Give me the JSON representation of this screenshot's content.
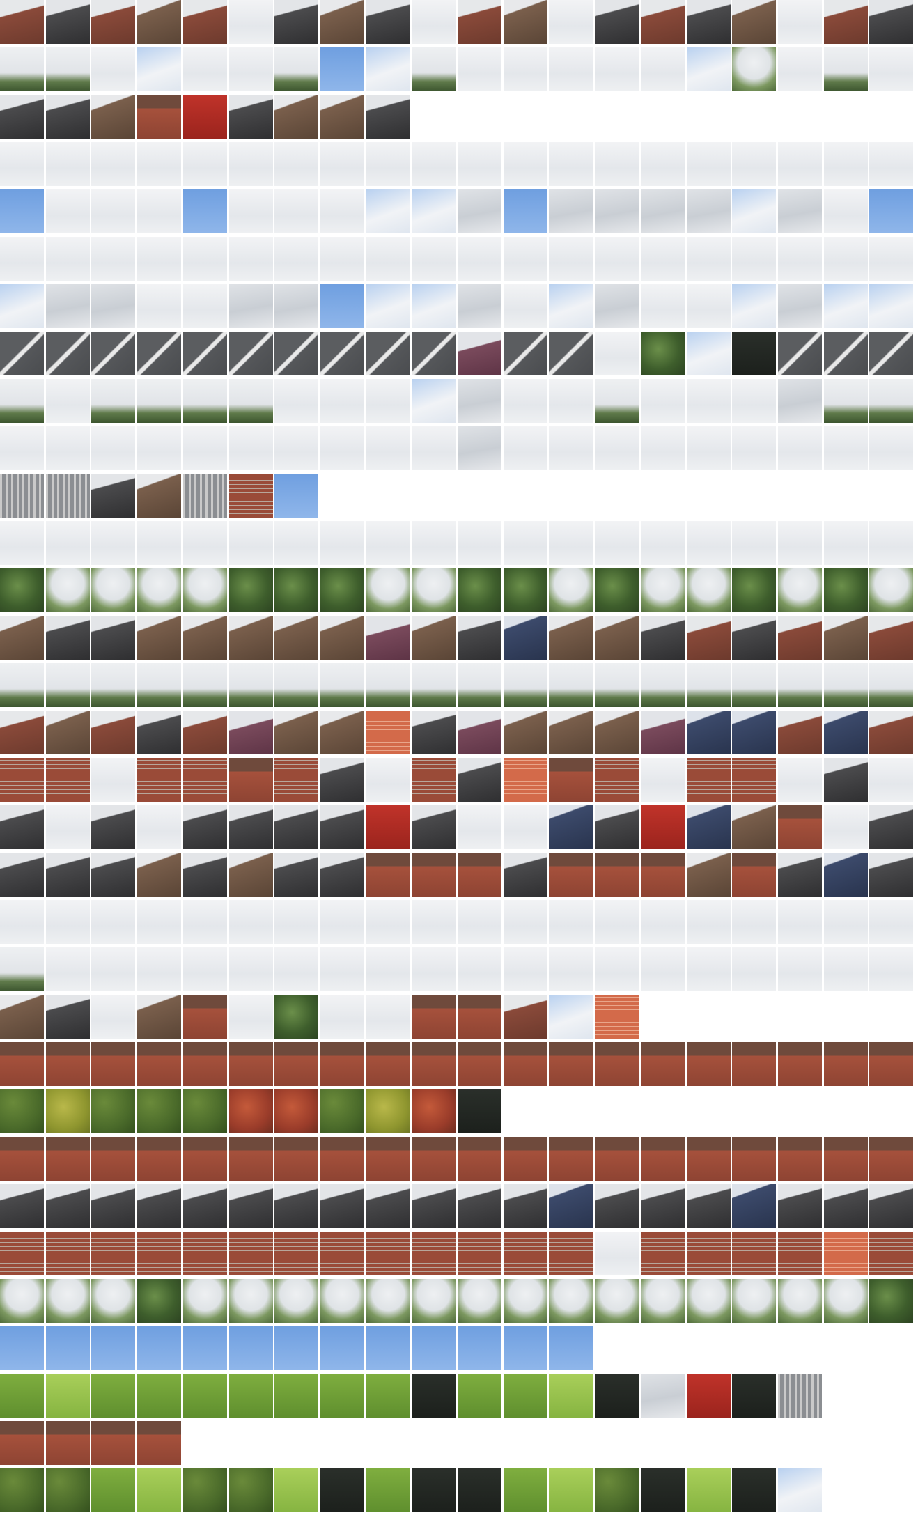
{
  "title": "",
  "rows": [
    {
      "count": 20,
      "swatches": [
        "roofr",
        "roofd",
        "roofr",
        "roofb",
        "roofr",
        "skyw",
        "roofd",
        "roofb",
        "roofd",
        "skyw",
        "roofr",
        "roofb",
        "skyw",
        "roofd",
        "roofr",
        "roofd",
        "roofb",
        "skyw",
        "roofr",
        "roofd"
      ]
    },
    {
      "count": 20,
      "swatches": [
        "skyt",
        "skyt",
        "skyw",
        "skybc",
        "skyw",
        "skyw",
        "skyt",
        "skyb",
        "skybc",
        "skyt",
        "skyw",
        "skyw",
        "skyw",
        "skyw",
        "skyw",
        "skybc",
        "treel",
        "skyw",
        "skyt",
        "skyw"
      ]
    },
    {
      "count": 9,
      "swatches": [
        "roofd",
        "roofd",
        "roofb",
        "house",
        "red",
        "roofd",
        "roofb",
        "roofb",
        "roofd"
      ]
    },
    {
      "count": 20,
      "swatches": [
        "skyw",
        "skyw",
        "skyw",
        "skyw",
        "skyw",
        "skyw",
        "skyw",
        "skyw",
        "skyw",
        "skyw",
        "skyw",
        "skyw",
        "skyw",
        "skyw",
        "skyw",
        "skyw",
        "skyw",
        "skyw",
        "skyw",
        "skyw"
      ]
    },
    {
      "count": 20,
      "swatches": [
        "skyb",
        "skyw",
        "skyw",
        "skyw",
        "skyb",
        "skyw",
        "skyw",
        "skyw",
        "skybc",
        "skybc",
        "skyg",
        "skyb",
        "skyg",
        "skyg",
        "skyg",
        "skyg",
        "skybc",
        "skyg",
        "skyw",
        "skyb"
      ]
    },
    {
      "count": 20,
      "swatches": [
        "skyw",
        "skyw",
        "skyw",
        "skyw",
        "skyw",
        "skyw",
        "skyw",
        "skyw",
        "skyw",
        "skyw",
        "skyw",
        "skyw",
        "skyw",
        "skyw",
        "skyw",
        "skyw",
        "skyw",
        "skyw",
        "skyw",
        "skyw"
      ]
    },
    {
      "count": 20,
      "swatches": [
        "skybc",
        "skyg",
        "skyg",
        "skyw",
        "skyw",
        "skyg",
        "skyg",
        "skyb",
        "skybc",
        "skybc",
        "skyg",
        "skyw",
        "skybc",
        "skyg",
        "skyw",
        "skyw",
        "skybc",
        "skyg",
        "skybc",
        "skybc"
      ]
    },
    {
      "count": 20,
      "swatches": [
        "road",
        "road",
        "road",
        "road",
        "road",
        "road",
        "road",
        "road",
        "road",
        "road",
        "roofp",
        "road",
        "road",
        "skyw",
        "treeg",
        "skybc",
        "dark",
        "road",
        "road",
        "road"
      ]
    },
    {
      "count": 20,
      "swatches": [
        "skyt",
        "skyw",
        "skyt",
        "skyt",
        "skyt",
        "skyt",
        "skyw",
        "skyw",
        "skyw",
        "skybc",
        "skyg",
        "skyw",
        "skyw",
        "skyt",
        "skyw",
        "skyw",
        "skyw",
        "skyg",
        "skyt",
        "skyt"
      ]
    },
    {
      "count": 20,
      "swatches": [
        "skyw",
        "skyw",
        "skyw",
        "skyw",
        "skyw",
        "skyw",
        "skyw",
        "skyw",
        "skyw",
        "skyw",
        "skyg",
        "skyw",
        "skyw",
        "skyw",
        "skyw",
        "skyw",
        "skyw",
        "skyw",
        "skyw",
        "skyw"
      ]
    },
    {
      "count": 7,
      "swatches": [
        "fence",
        "fence",
        "roofd",
        "roofb",
        "fence",
        "brick",
        "skyb"
      ]
    },
    {
      "count": 20,
      "swatches": [
        "skyw",
        "skyw",
        "skyw",
        "skyw",
        "skyw",
        "skyw",
        "skyw",
        "skyw",
        "skyw",
        "skyw",
        "skyw",
        "skyw",
        "skyw",
        "skyw",
        "skyw",
        "skyw",
        "skyw",
        "skyw",
        "skyw",
        "skyw"
      ]
    },
    {
      "count": 20,
      "swatches": [
        "treeg",
        "treel",
        "treel",
        "treel",
        "treel",
        "treeg",
        "treeg",
        "treeg",
        "treel",
        "treel",
        "treeg",
        "treeg",
        "treel",
        "treeg",
        "treel",
        "treel",
        "treeg",
        "treel",
        "treeg",
        "treel"
      ]
    },
    {
      "count": 20,
      "swatches": [
        "roofb",
        "roofd",
        "roofd",
        "roofb",
        "roofb",
        "roofb",
        "roofb",
        "roofb",
        "roofp",
        "roofb",
        "roofd",
        "roofbl",
        "roofb",
        "roofb",
        "roofd",
        "roofr",
        "roofd",
        "roofr",
        "roofb",
        "roofr"
      ]
    },
    {
      "count": 20,
      "swatches": [
        "skyt",
        "skyt",
        "skyt",
        "skyt",
        "skyt",
        "skyt",
        "skyt",
        "skyt",
        "skyt",
        "skyt",
        "skyt",
        "skyt",
        "skyt",
        "skyt",
        "skyt",
        "skyt",
        "skyt",
        "skyt",
        "skyt",
        "skyt"
      ]
    },
    {
      "count": 20,
      "swatches": [
        "roofr",
        "roofb",
        "roofr",
        "roofd",
        "roofr",
        "roofp",
        "roofb",
        "roofb",
        "brickl",
        "roofd",
        "roofp",
        "roofb",
        "roofb",
        "roofb",
        "roofp",
        "roofbl",
        "roofbl",
        "roofr",
        "roofbl",
        "roofr"
      ]
    },
    {
      "count": 20,
      "swatches": [
        "brick",
        "brick",
        "skyw",
        "brick",
        "brick",
        "house",
        "brick",
        "roofd",
        "skyw",
        "brick",
        "roofd",
        "brickl",
        "house",
        "brick",
        "skyw",
        "brick",
        "brick",
        "skyw",
        "roofd",
        "skyw"
      ]
    },
    {
      "count": 20,
      "swatches": [
        "roofd",
        "skyw",
        "roofd",
        "skyw",
        "roofd",
        "roofd",
        "roofd",
        "roofd",
        "red",
        "roofd",
        "skyw",
        "skyw",
        "roofbl",
        "roofd",
        "red",
        "roofbl",
        "roofb",
        "house",
        "skyw",
        "roofd"
      ]
    },
    {
      "count": 20,
      "swatches": [
        "roofd",
        "roofd",
        "roofd",
        "roofb",
        "roofd",
        "roofb",
        "roofd",
        "roofd",
        "house",
        "house",
        "house",
        "roofd",
        "house",
        "house",
        "house",
        "roofb",
        "house",
        "roofd",
        "roofbl",
        "roofd"
      ]
    },
    {
      "count": 20,
      "swatches": [
        "skyw",
        "skyw",
        "skyw",
        "skyw",
        "skyw",
        "skyw",
        "skyw",
        "skyw",
        "skyw",
        "skyw",
        "skyw",
        "skyw",
        "skyw",
        "skyw",
        "skyw",
        "skyw",
        "skyw",
        "skyw",
        "skyw",
        "skyw"
      ]
    },
    {
      "count": 20,
      "swatches": [
        "skyt",
        "skyw",
        "skyw",
        "skyw",
        "skyw",
        "skyw",
        "skyw",
        "skyw",
        "skyw",
        "skyw",
        "skyw",
        "skyw",
        "skyw",
        "skyw",
        "skyw",
        "skyw",
        "skyw",
        "skyw",
        "skyw",
        "skyw"
      ]
    },
    {
      "count": 14,
      "swatches": [
        "roofb",
        "roofd",
        "skyw",
        "roofb",
        "house",
        "skyw",
        "treeg",
        "skyw",
        "skyw",
        "house",
        "house",
        "roofr",
        "skybc",
        "brickl"
      ]
    },
    {
      "count": 20,
      "swatches": [
        "house",
        "house",
        "house",
        "house",
        "house",
        "house",
        "house",
        "house",
        "house",
        "house",
        "house",
        "house",
        "house",
        "house",
        "house",
        "house",
        "house",
        "house",
        "house",
        "house"
      ]
    },
    {
      "count": 11,
      "swatches": [
        "hedge",
        "hedgy",
        "hedge",
        "hedge",
        "hedge",
        "autumn",
        "autumn",
        "hedge",
        "hedgy",
        "autumn",
        "dark"
      ]
    },
    {
      "count": 20,
      "swatches": [
        "house",
        "house",
        "house",
        "house",
        "house",
        "house",
        "house",
        "house",
        "house",
        "house",
        "house",
        "house",
        "house",
        "house",
        "house",
        "house",
        "house",
        "house",
        "house",
        "house"
      ]
    },
    {
      "count": 20,
      "swatches": [
        "roofd",
        "roofd",
        "roofd",
        "roofd",
        "roofd",
        "roofd",
        "roofd",
        "roofd",
        "roofd",
        "roofd",
        "roofd",
        "roofd",
        "roofbl",
        "roofd",
        "roofd",
        "roofd",
        "roofbl",
        "roofd",
        "roofd",
        "roofd"
      ]
    },
    {
      "count": 20,
      "swatches": [
        "brick",
        "brick",
        "brick",
        "brick",
        "brick",
        "brick",
        "brick",
        "brick",
        "brick",
        "brick",
        "brick",
        "brick",
        "brick",
        "skyw",
        "brick",
        "brick",
        "brick",
        "brick",
        "brickl",
        "brick"
      ]
    },
    {
      "count": 20,
      "swatches": [
        "treel",
        "treel",
        "treel",
        "treeg",
        "treel",
        "treel",
        "treel",
        "treel",
        "treel",
        "treel",
        "treel",
        "treel",
        "treel",
        "treel",
        "treel",
        "treel",
        "treel",
        "treel",
        "treel",
        "treeg"
      ]
    },
    {
      "count": 13,
      "swatches": [
        "skyb",
        "skyb",
        "skyb",
        "skyb",
        "skyb",
        "skyb",
        "skyb",
        "skyb",
        "skyb",
        "skyb",
        "skyb",
        "skyb",
        "skyb"
      ]
    },
    {
      "count": 18,
      "swatches": [
        "grass",
        "grasl",
        "grass",
        "grass",
        "grass",
        "grass",
        "grass",
        "grass",
        "grass",
        "dark",
        "grass",
        "grass",
        "grasl",
        "dark",
        "skyg",
        "red",
        "dark",
        "fence"
      ]
    },
    {
      "count": 4,
      "swatches": [
        "house",
        "house",
        "house",
        "house"
      ]
    },
    {
      "count": 18,
      "swatches": [
        "hedge",
        "hedge",
        "grass",
        "grasl",
        "hedge",
        "hedge",
        "grasl",
        "dark",
        "grass",
        "dark",
        "dark",
        "grass",
        "grasl",
        "hedge",
        "dark",
        "grasl",
        "dark",
        "skybc"
      ]
    }
  ]
}
